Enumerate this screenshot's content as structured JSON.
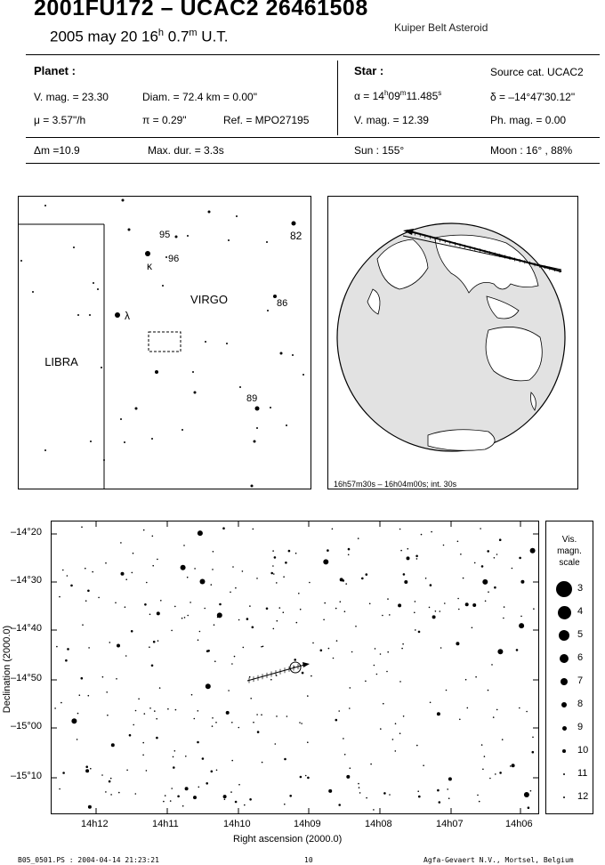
{
  "header": {
    "title": "2001FU172  –  UCAC2 26461508",
    "date_prefix": "2005 may 20  16",
    "date_h": "h",
    "date_mid": " 0.7",
    "date_m": "m",
    "date_suffix": " U.T.",
    "object_type": "Kuiper Belt Asteroid"
  },
  "planet": {
    "heading": "Planet :",
    "vmag": "V. mag. = 23.30",
    "diam": "Diam. = 72.4 km = 0.00\"",
    "mu": "μ =  3.57\"/h",
    "pi": "π =  0.29\"",
    "ref": "Ref. = MPO27195"
  },
  "star": {
    "heading": "Star :",
    "source": "Source cat.  UCAC2",
    "alpha_prefix": "α = 14",
    "alpha_h": "h",
    "alpha_mid": "09",
    "alpha_m": "m",
    "alpha_s": "11.485",
    "alpha_sup": "s",
    "delta": "δ = –14°47'30.12\"",
    "vmag": "V. mag. = 12.39",
    "phmag": "Ph. mag. =  0.00"
  },
  "summary": {
    "dm": "Δm =10.9",
    "maxdur": "Max. dur. = 3.3s",
    "sun": "Sun : 155°",
    "moon": "Moon :  16° , 88%"
  },
  "finder": {
    "constellation_main": "VIRGO",
    "constellation_left": "LIBRA",
    "labels": [
      "95",
      "96",
      "κ",
      "82",
      "86",
      "λ",
      "89"
    ]
  },
  "globe": {
    "caption": "16h57m30s – 16h04m00s; int. 30s"
  },
  "chart": {
    "ylabel": "Declination (2000.0)",
    "xlabel": "Right ascension (2000.0)",
    "dec_ticks": [
      "–14°20",
      "–14°30",
      "–14°40",
      "–14°50",
      "–15°00",
      "–15°10"
    ],
    "ra_ticks": [
      "14h12",
      "14h11",
      "14h10",
      "14h09",
      "14h08",
      "14h07",
      "14h06"
    ],
    "legend_title": [
      "Vis.",
      "magn.",
      "scale"
    ],
    "legend_mags": [
      "3",
      "4",
      "5",
      "6",
      "7",
      "8",
      "9",
      "10",
      "11",
      "12"
    ]
  },
  "footer": {
    "file": "B05_0501.PS : 2004-04-14 21:23:21",
    "page": "10",
    "company": "Agfa-Gevaert N.V., Mortsel, Belgium"
  }
}
